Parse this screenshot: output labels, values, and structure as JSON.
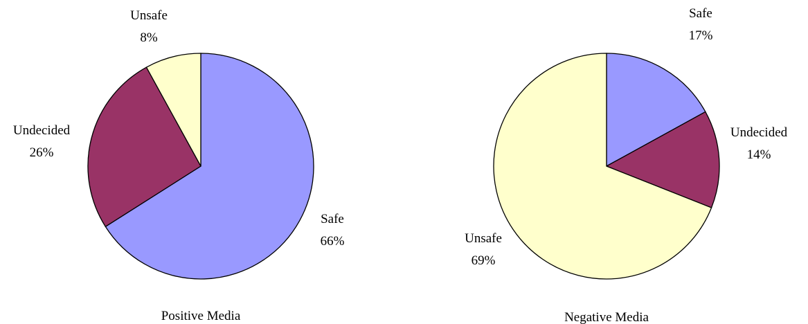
{
  "chart_data": [
    {
      "type": "pie",
      "title": "Positive Media",
      "start_angle_deg": 0,
      "direction": "clockwise",
      "categories": [
        "Safe",
        "Undecided",
        "Unsafe"
      ],
      "values": [
        66,
        26,
        8
      ],
      "labels": [
        "66%",
        "26%",
        "8%"
      ],
      "colors": [
        "#9999ff",
        "#993366",
        "#ffffcc"
      ]
    },
    {
      "type": "pie",
      "title": "Negative Media",
      "start_angle_deg": 0,
      "direction": "clockwise",
      "categories": [
        "Safe",
        "Undecided",
        "Unsafe"
      ],
      "values": [
        17,
        14,
        69
      ],
      "labels": [
        "17%",
        "14%",
        "69%"
      ],
      "colors": [
        "#9999ff",
        "#993366",
        "#ffffcc"
      ]
    }
  ]
}
